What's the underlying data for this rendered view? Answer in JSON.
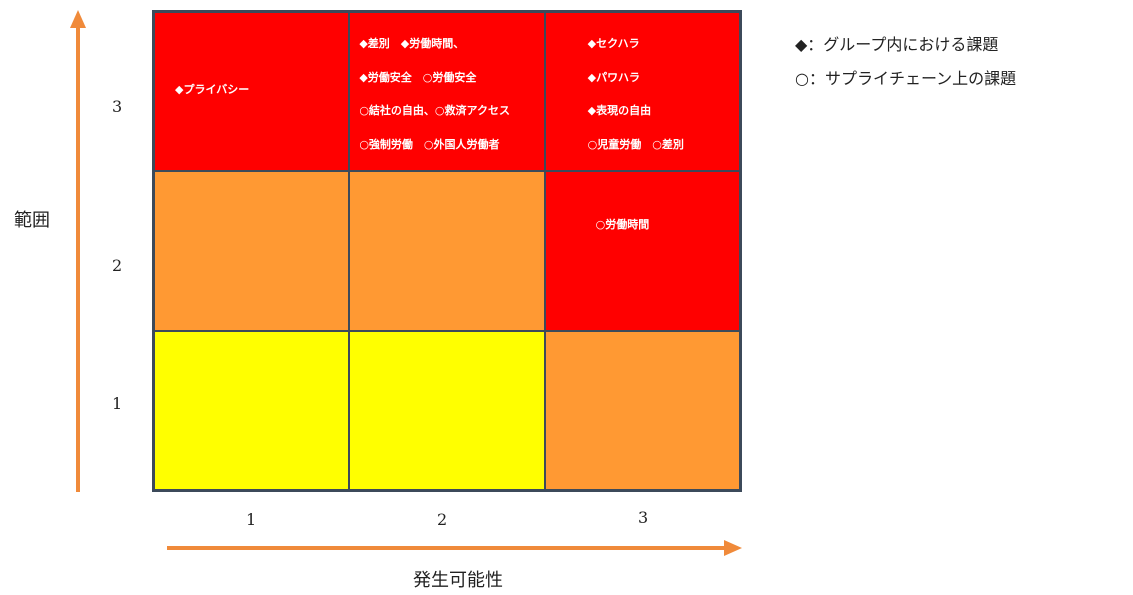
{
  "axes": {
    "y_title": "範囲",
    "x_title": "発生可能性",
    "y_ticks": [
      "3",
      "2",
      "1"
    ],
    "x_ticks": [
      "1",
      "2",
      "3"
    ]
  },
  "legend": {
    "group": "◆：グループ内における課題",
    "supply_chain": "○：サプライチェーン上の課題"
  },
  "colors": {
    "high": "#ff0000",
    "medium": "#ff9933",
    "low": "#ffff00",
    "axis_arrow": "#f08a3a"
  },
  "matrix": {
    "r3c1": {
      "level": "high",
      "lines": [
        "◆プライバシー"
      ]
    },
    "r3c2": {
      "level": "high",
      "lines": [
        "◆差別　◆労働時間、",
        "◆労働安全　○労働安全",
        "○結社の自由、○救済アクセス",
        "○強制労働　○外国人労働者"
      ]
    },
    "r3c3": {
      "level": "high",
      "lines": [
        "◆セクハラ",
        "◆パワハラ",
        "◆表現の自由",
        "○児童労働　○差別"
      ]
    },
    "r2c1": {
      "level": "medium",
      "lines": []
    },
    "r2c2": {
      "level": "medium",
      "lines": []
    },
    "r2c3": {
      "level": "high",
      "lines": [
        "○労働時間"
      ]
    },
    "r1c1": {
      "level": "low",
      "lines": []
    },
    "r1c2": {
      "level": "low",
      "lines": []
    },
    "r1c3": {
      "level": "medium",
      "lines": []
    }
  }
}
